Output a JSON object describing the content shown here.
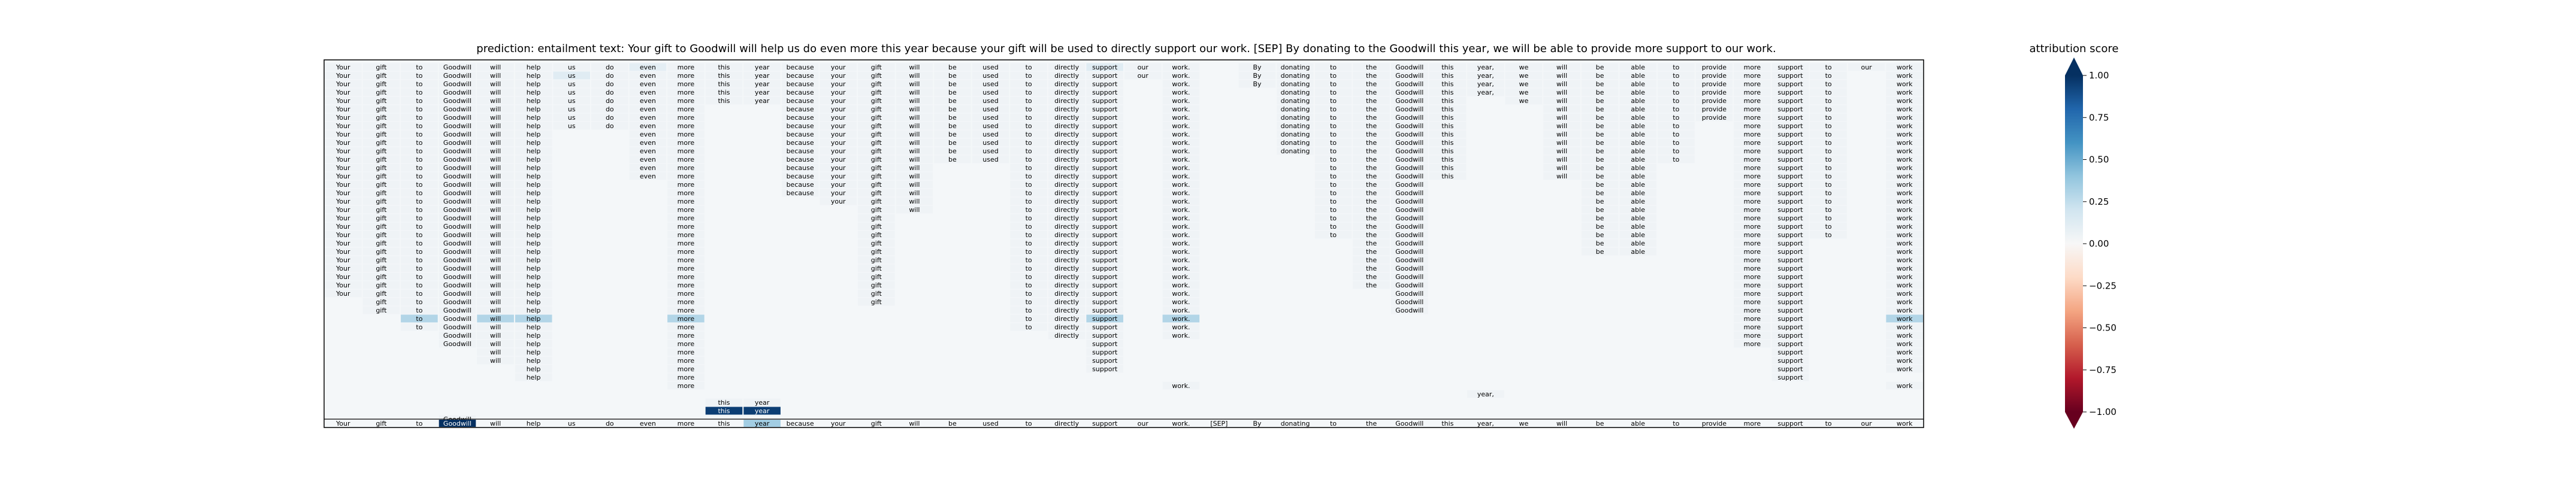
{
  "title": "prediction:  entailment      text:  Your gift to Goodwill will help us do even more this year because your gift will be used to directly support our work. [SEP] By donating to the Goodwill this year, we will be able to provide more support to our work.",
  "colorbar": {
    "label": "attribution score",
    "ticks": [
      "1.00",
      "0.75",
      "0.50",
      "0.25",
      "0.00",
      "−0.25",
      "−0.50",
      "−0.75",
      "−1.00"
    ]
  },
  "chart_data": {
    "type": "heatmap",
    "tokens": [
      "Your",
      "gift",
      "to",
      "Goodwill",
      "will",
      "help",
      "us",
      "do",
      "even",
      "more",
      "this",
      "year",
      "because",
      "your",
      "gift",
      "will",
      "be",
      "used",
      "to",
      "directly",
      "support",
      "our",
      "work.",
      "[SEP]",
      "By",
      "donating",
      "to",
      "the",
      "Goodwill",
      "this",
      "year,",
      "we",
      "will",
      "be",
      "able",
      "to",
      "provide",
      "more",
      "support",
      "to",
      "our",
      "work"
    ],
    "stack_rows": 40,
    "stack_counts": [
      28,
      30,
      32,
      34,
      36,
      38,
      8,
      8,
      14,
      39,
      5,
      5,
      16,
      17,
      29,
      18,
      12,
      12,
      32,
      33,
      37,
      2,
      33,
      0,
      3,
      11,
      21,
      27,
      30,
      14,
      4,
      5,
      14,
      23,
      23,
      12,
      7,
      34,
      38,
      21,
      1,
      37
    ],
    "highlights": [
      {
        "token": "Goodwill",
        "row": "axis",
        "value": 1.0
      },
      {
        "token": "year",
        "row": "axis",
        "value": 0.35
      },
      {
        "token": "this",
        "row": 41,
        "value": 0.95
      },
      {
        "token": "year",
        "row": 41,
        "value": 0.95
      },
      {
        "token": "will",
        "row": 30,
        "value": 0.3
      },
      {
        "token": "help",
        "row": 30,
        "value": 0.3
      },
      {
        "token": "more",
        "row": 30,
        "value": 0.3
      },
      {
        "token": "to",
        "row": 30,
        "value": 0.3
      },
      {
        "token": "support",
        "row": 30,
        "value": 0.3
      },
      {
        "token": "work.",
        "row": 30,
        "value": 0.3
      },
      {
        "token": "work",
        "row": 30,
        "value": 0.3
      },
      {
        "token": "support",
        "row": 0,
        "value": 0.12
      },
      {
        "token": "us",
        "row": 1,
        "value": 0.12
      },
      {
        "token": "even",
        "row": 0,
        "value": 0.1
      }
    ],
    "extra_cells": [
      {
        "token": "this",
        "row": 40
      },
      {
        "token": "year",
        "row": 40
      },
      {
        "token": "Goodwill",
        "row": 42
      },
      {
        "token": "work.",
        "row": 38
      },
      {
        "token": "year,",
        "row": 39
      },
      {
        "token": "work",
        "row": 38
      }
    ],
    "base_value": 0.04,
    "vmin": -1.0,
    "vmax": 1.0
  }
}
